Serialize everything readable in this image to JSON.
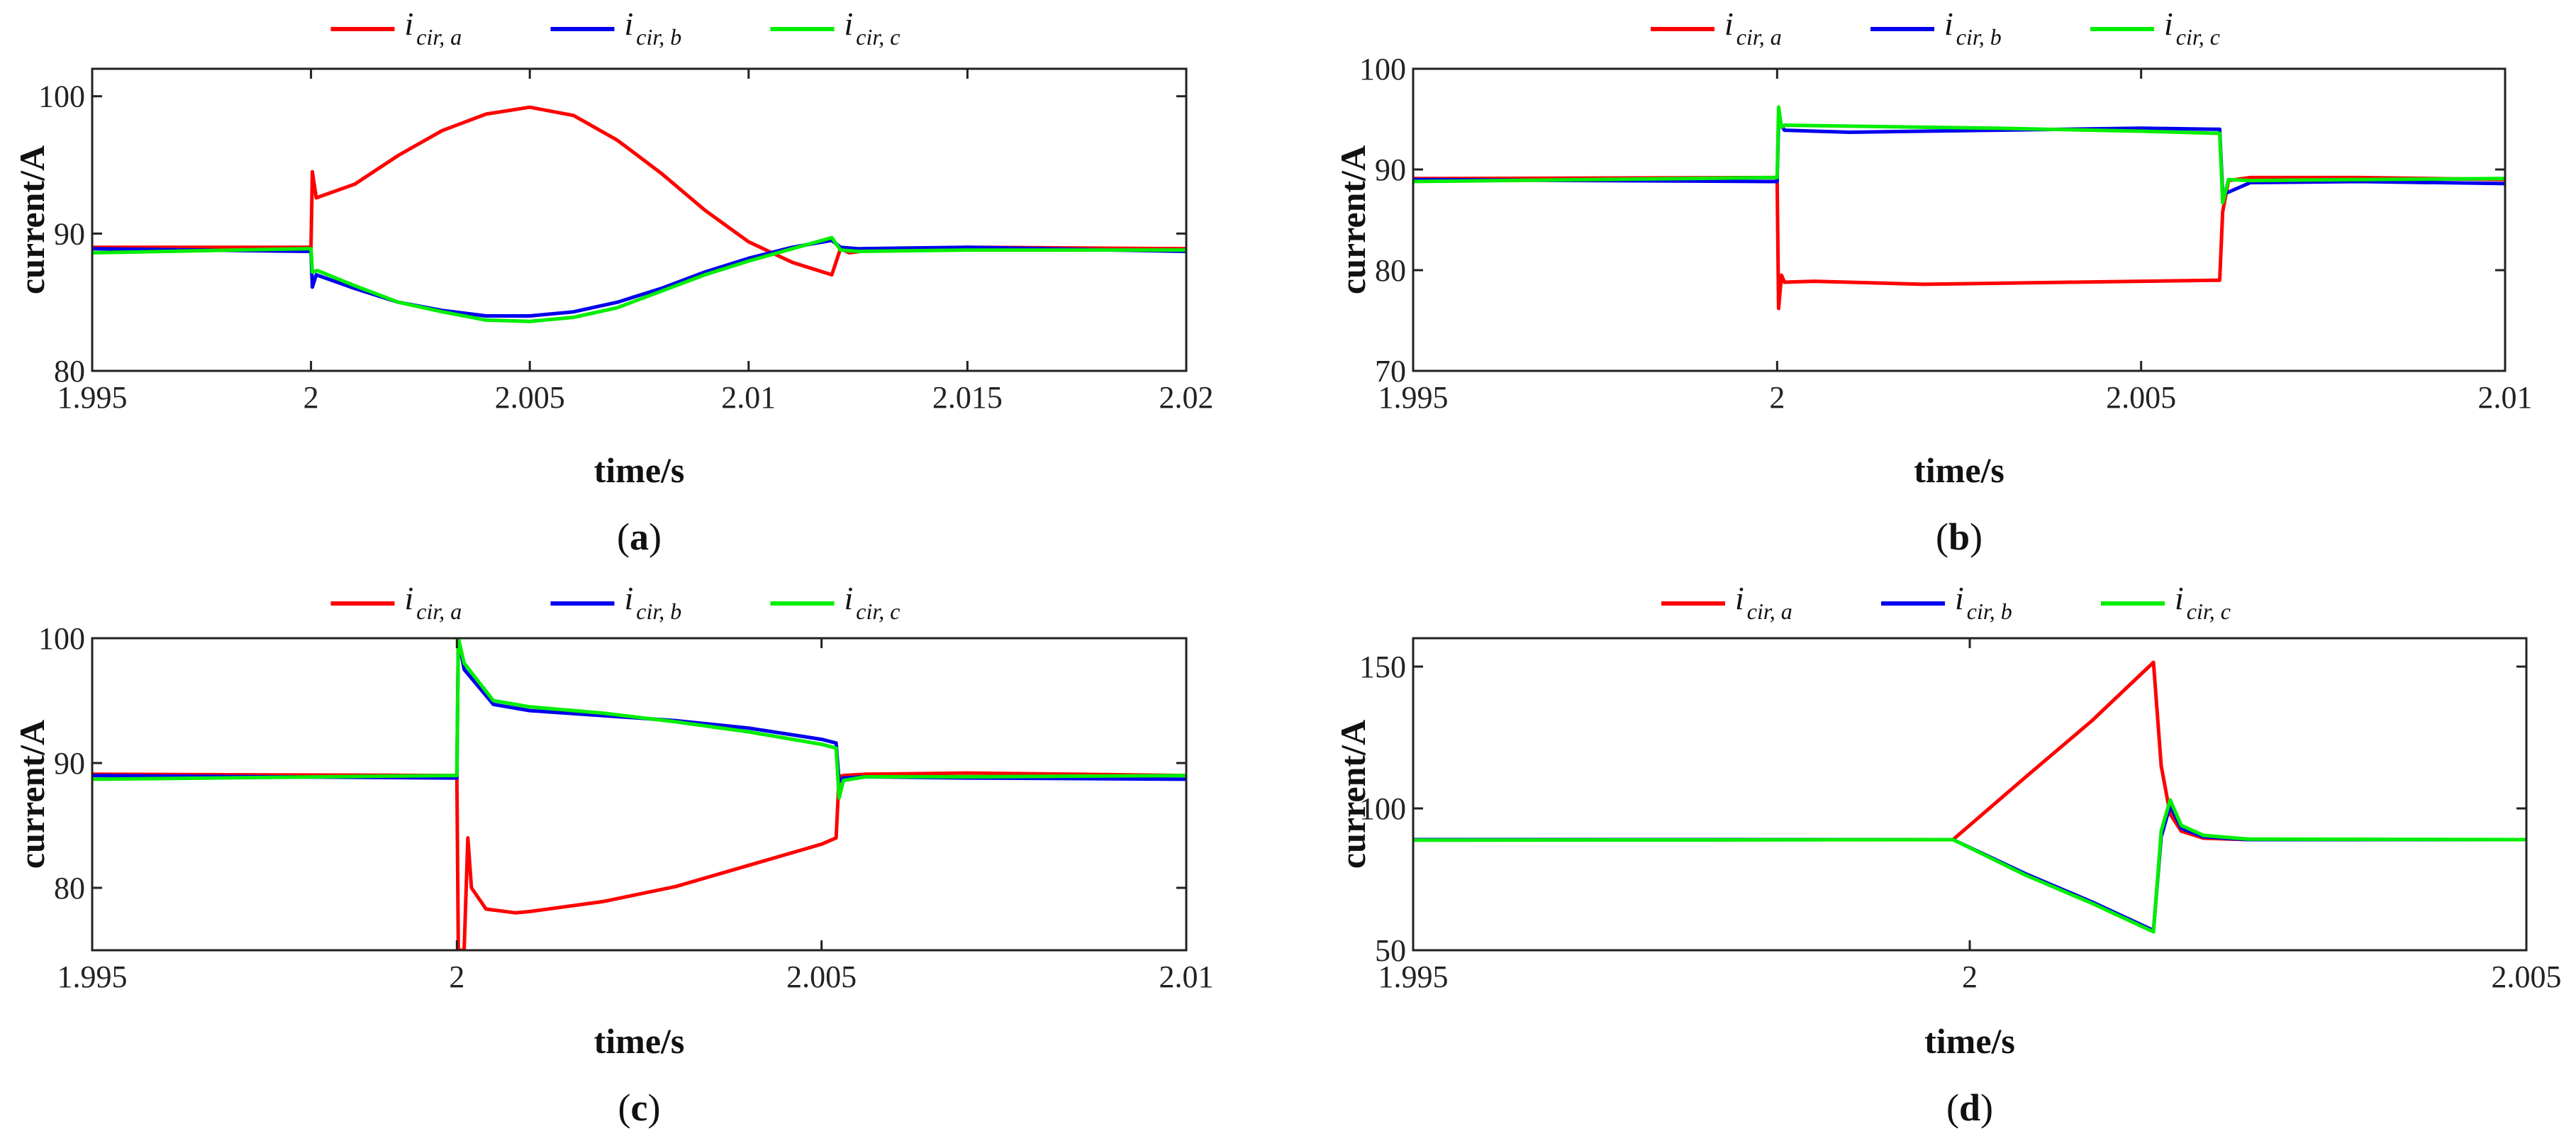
{
  "chart_data": [
    {
      "type": "line",
      "panel_label": "a",
      "xlabel": "time/s",
      "ylabel": "current/A",
      "xlim": [
        1.995,
        2.02
      ],
      "ylim": [
        80,
        102
      ],
      "xticks": [
        1.995,
        2,
        2.005,
        2.01,
        2.015,
        2.02
      ],
      "xtick_labels": [
        "1.995",
        "2",
        "2.005",
        "2.01",
        "2.015",
        "2.02"
      ],
      "yticks": [
        80,
        90,
        100
      ],
      "ytick_labels": [
        "80",
        "90",
        "100"
      ],
      "legend": {
        "position": "top-center",
        "entries": [
          {
            "main": "i",
            "sub": "cir, a"
          },
          {
            "main": "i",
            "sub": "cir, b"
          },
          {
            "main": "i",
            "sub": "cir, c"
          }
        ]
      },
      "series": [
        {
          "name": "i_cir,a",
          "color": "#ff0000",
          "x": [
            1.995,
            1.9999,
            2.0,
            2.00003,
            2.00012,
            2.001,
            2.002,
            2.003,
            2.004,
            2.005,
            2.006,
            2.007,
            2.008,
            2.009,
            2.01,
            2.011,
            2.0119,
            2.0121,
            2.0123,
            2.0128,
            2.015,
            2.02
          ],
          "y": [
            89.0,
            89.0,
            89.0,
            94.5,
            92.6,
            93.6,
            95.7,
            97.5,
            98.7,
            99.2,
            98.6,
            96.8,
            94.4,
            91.7,
            89.4,
            87.9,
            87.0,
            88.9,
            88.6,
            88.8,
            89.0,
            88.9
          ]
        },
        {
          "name": "i_cir,b",
          "color": "#0000ee",
          "x": [
            1.995,
            1.9999,
            2.0,
            2.00003,
            2.00012,
            2.001,
            2.002,
            2.003,
            2.004,
            2.005,
            2.006,
            2.007,
            2.008,
            2.009,
            2.01,
            2.011,
            2.0119,
            2.0121,
            2.0125,
            2.015,
            2.02
          ],
          "y": [
            88.9,
            88.7,
            88.7,
            86.1,
            87.0,
            86.0,
            85.0,
            84.4,
            84.0,
            84.0,
            84.3,
            85.0,
            86.0,
            87.2,
            88.2,
            89.0,
            89.5,
            89.0,
            88.9,
            89.0,
            88.7
          ]
        },
        {
          "name": "i_cir,c",
          "color": "#00ee00",
          "x": [
            1.995,
            1.9999,
            2.0,
            2.00003,
            2.00015,
            2.001,
            2.002,
            2.003,
            2.004,
            2.005,
            2.006,
            2.007,
            2.008,
            2.009,
            2.01,
            2.011,
            2.0119,
            2.0121,
            2.0125,
            2.015,
            2.02
          ],
          "y": [
            88.6,
            88.9,
            88.9,
            87.2,
            87.3,
            86.2,
            85.0,
            84.3,
            83.7,
            83.6,
            83.9,
            84.6,
            85.8,
            87.0,
            88.0,
            88.9,
            89.7,
            88.8,
            88.7,
            88.8,
            88.8
          ]
        }
      ]
    },
    {
      "type": "line",
      "panel_label": "b",
      "xlabel": "time/s",
      "ylabel": "current/A",
      "xlim": [
        1.995,
        2.01
      ],
      "ylim": [
        70,
        100
      ],
      "xticks": [
        1.995,
        2,
        2.005,
        2.01
      ],
      "xtick_labels": [
        "1.995",
        "2",
        "2.005",
        "2.01"
      ],
      "yticks": [
        70,
        80,
        90,
        100
      ],
      "ytick_labels": [
        "70",
        "80",
        "90",
        "100"
      ],
      "legend": {
        "position": "top-center",
        "entries": [
          {
            "main": "i",
            "sub": "cir, a"
          },
          {
            "main": "i",
            "sub": "cir, b"
          },
          {
            "main": "i",
            "sub": "cir, c"
          }
        ]
      },
      "series": [
        {
          "name": "i_cir,a",
          "color": "#ff0000",
          "x": [
            1.995,
            1.9999,
            2.0,
            2.00002,
            2.00006,
            2.0001,
            2.0005,
            2.002,
            2.004,
            2.006,
            2.00608,
            2.00612,
            2.0062,
            2.0065,
            2.008,
            2.01
          ],
          "y": [
            89.1,
            89.2,
            89.2,
            76.2,
            79.5,
            78.8,
            78.9,
            78.6,
            78.8,
            79.0,
            79.0,
            85.8,
            88.9,
            89.2,
            89.2,
            89.0
          ]
        },
        {
          "name": "i_cir,b",
          "color": "#0000ee",
          "x": [
            1.995,
            1.9999,
            2.0,
            2.00002,
            2.0001,
            2.001,
            2.003,
            2.005,
            2.006,
            2.00608,
            2.00612,
            2.0065,
            2.008,
            2.01
          ],
          "y": [
            89.0,
            88.8,
            88.8,
            94.8,
            93.9,
            93.7,
            93.9,
            94.1,
            94.0,
            94.0,
            87.5,
            88.7,
            88.8,
            88.6
          ]
        },
        {
          "name": "i_cir,c",
          "color": "#00ee00",
          "x": [
            1.995,
            1.9999,
            2.0,
            2.00002,
            2.00006,
            2.0001,
            2.001,
            2.003,
            2.005,
            2.006,
            2.00608,
            2.00612,
            2.0062,
            2.0065,
            2.008,
            2.01
          ],
          "y": [
            88.8,
            89.2,
            89.2,
            96.2,
            94.2,
            94.4,
            94.3,
            94.1,
            93.8,
            93.6,
            93.6,
            86.7,
            89.0,
            88.9,
            89.0,
            89.1
          ]
        }
      ]
    },
    {
      "type": "line",
      "panel_label": "c",
      "xlabel": "time/s",
      "ylabel": "current/A",
      "xlim": [
        1.995,
        2.01
      ],
      "ylim": [
        75,
        100
      ],
      "xticks": [
        1.995,
        2,
        2.005,
        2.01
      ],
      "xtick_labels": [
        "1.995",
        "2",
        "2.005",
        "2.01"
      ],
      "yticks": [
        80,
        90,
        100
      ],
      "ytick_labels": [
        "80",
        "90",
        "100"
      ],
      "legend": {
        "position": "top-center",
        "entries": [
          {
            "main": "i",
            "sub": "cir, a"
          },
          {
            "main": "i",
            "sub": "cir, b"
          },
          {
            "main": "i",
            "sub": "cir, c"
          }
        ]
      },
      "series": [
        {
          "name": "i_cir,a",
          "color": "#ff0000",
          "x": [
            1.995,
            1.9999,
            2.0,
            2.00002,
            2.0001,
            2.00015,
            2.0002,
            2.0004,
            2.0008,
            2.001,
            2.002,
            2.003,
            2.004,
            2.005,
            2.0052,
            2.00524,
            2.0053,
            2.0056,
            2.007,
            2.01
          ],
          "y": [
            89.1,
            89.0,
            89.0,
            75.0,
            75.0,
            84.0,
            80.0,
            78.3,
            78.0,
            78.1,
            78.9,
            80.1,
            81.8,
            83.5,
            84.0,
            88.9,
            89.0,
            89.1,
            89.2,
            89.0
          ]
        },
        {
          "name": "i_cir,b",
          "color": "#0000ee",
          "x": [
            1.995,
            1.9999,
            2.0,
            2.00002,
            2.0001,
            2.0005,
            2.001,
            2.002,
            2.003,
            2.004,
            2.005,
            2.0052,
            2.00524,
            2.0053,
            2.0056,
            2.007,
            2.01
          ],
          "y": [
            89.0,
            88.8,
            88.8,
            100.0,
            97.5,
            94.7,
            94.2,
            93.8,
            93.4,
            92.8,
            91.9,
            91.6,
            88.5,
            88.8,
            88.9,
            88.8,
            88.7
          ]
        },
        {
          "name": "i_cir,c",
          "color": "#00ee00",
          "x": [
            1.995,
            1.9999,
            2.0,
            2.00002,
            2.0001,
            2.0005,
            2.001,
            2.002,
            2.003,
            2.004,
            2.005,
            2.0052,
            2.00524,
            2.0053,
            2.0056,
            2.007,
            2.01
          ],
          "y": [
            88.7,
            89.0,
            89.0,
            100.0,
            98.0,
            95.0,
            94.5,
            94.0,
            93.3,
            92.5,
            91.5,
            91.2,
            87.2,
            88.6,
            88.9,
            88.9,
            89.0
          ]
        }
      ]
    },
    {
      "type": "line",
      "panel_label": "d",
      "xlabel": "time/s",
      "ylabel": "current/A",
      "xlim": [
        1.995,
        2.005
      ],
      "ylim": [
        50,
        160
      ],
      "xticks": [
        1.995,
        2,
        2.005
      ],
      "xtick_labels": [
        "1.995",
        "2",
        "2.005"
      ],
      "yticks": [
        50,
        100,
        150
      ],
      "ytick_labels": [
        "50",
        "100",
        "150"
      ],
      "legend": {
        "position": "top-center",
        "entries": [
          {
            "main": "i",
            "sub": "cir, a"
          },
          {
            "main": "i",
            "sub": "cir, b"
          },
          {
            "main": "i",
            "sub": "cir, c"
          }
        ]
      },
      "series": [
        {
          "name": "i_cir,a",
          "color": "#ff0000",
          "x": [
            1.995,
            1.998,
            1.99985,
            2.0005,
            2.0011,
            2.00165,
            2.00172,
            2.0018,
            2.0019,
            2.0021,
            2.0025,
            2.005
          ],
          "y": [
            89.0,
            89.0,
            89.0,
            111.0,
            131.0,
            151.5,
            115.0,
            98.0,
            92.0,
            89.5,
            89.0,
            89.0
          ]
        },
        {
          "name": "i_cir,b",
          "color": "#0000ee",
          "x": [
            1.995,
            1.998,
            1.99985,
            2.0005,
            2.0011,
            2.00165,
            2.00172,
            2.0018,
            2.0019,
            2.0021,
            2.0025,
            2.005
          ],
          "y": [
            89.0,
            89.0,
            89.0,
            77.0,
            67.0,
            57.0,
            90.0,
            101.0,
            93.0,
            90.0,
            89.0,
            89.0
          ]
        },
        {
          "name": "i_cir,c",
          "color": "#00ee00",
          "x": [
            1.995,
            1.998,
            1.99985,
            2.0005,
            2.0011,
            2.00165,
            2.00172,
            2.0018,
            2.0019,
            2.0021,
            2.0025,
            2.005
          ],
          "y": [
            88.8,
            88.9,
            89.0,
            76.5,
            66.5,
            56.5,
            92.0,
            103.0,
            94.0,
            90.5,
            89.2,
            89.0
          ]
        }
      ]
    }
  ]
}
